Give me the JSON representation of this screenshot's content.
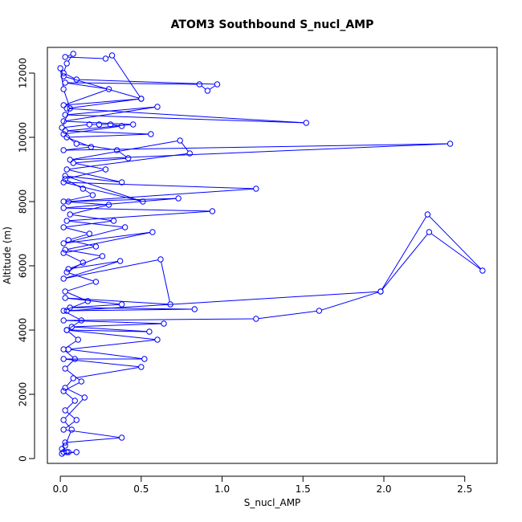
{
  "chart_data": {
    "type": "line",
    "title": "ATOM3 Southbound S_nucl_AMP",
    "xlabel": "S_nucl_AMP",
    "ylabel": "Altitude (m)",
    "xlim": [
      -0.08,
      2.7
    ],
    "ylim": [
      -150,
      12800
    ],
    "xticks": [
      0.0,
      0.5,
      1.0,
      1.5,
      2.0,
      2.5
    ],
    "xtick_labels": [
      "0.0",
      "0.5",
      "1.0",
      "1.5",
      "2.0",
      "2.5"
    ],
    "yticks": [
      0,
      2000,
      4000,
      6000,
      8000,
      10000,
      12000
    ],
    "ytick_labels": [
      "0",
      "2000",
      "4000",
      "6000",
      "8000",
      "10000",
      "12000"
    ],
    "grid": false,
    "marker": "open-circle",
    "series": [
      {
        "color": "#0000ff",
        "points": [
          [
            0.02,
            200
          ],
          [
            0.05,
            200
          ],
          [
            0.1,
            200
          ],
          [
            0.01,
            150
          ],
          [
            0.03,
            400
          ],
          [
            0.07,
            900
          ],
          [
            0.02,
            1200
          ],
          [
            0.15,
            1900
          ],
          [
            0.03,
            2200
          ],
          [
            0.08,
            2500
          ],
          [
            0.5,
            2850
          ],
          [
            0.02,
            3100
          ],
          [
            0.52,
            3100
          ],
          [
            0.05,
            3400
          ],
          [
            0.6,
            3700
          ],
          [
            0.04,
            4000
          ],
          [
            0.55,
            3950
          ],
          [
            0.07,
            4100
          ],
          [
            0.64,
            4200
          ],
          [
            0.02,
            4300
          ],
          [
            1.21,
            4350
          ],
          [
            1.6,
            4600
          ],
          [
            1.98,
            5200
          ],
          [
            2.28,
            7050
          ],
          [
            2.61,
            5850
          ],
          [
            2.27,
            7600
          ],
          [
            1.98,
            5200
          ],
          [
            0.04,
            4600
          ],
          [
            0.83,
            4650
          ],
          [
            0.06,
            4700
          ],
          [
            0.38,
            4800
          ],
          [
            0.03,
            5000
          ],
          [
            0.68,
            4800
          ],
          [
            0.62,
            6200
          ],
          [
            0.02,
            5600
          ],
          [
            0.37,
            6150
          ],
          [
            0.05,
            5900
          ],
          [
            0.26,
            6300
          ],
          [
            0.03,
            6500
          ],
          [
            0.57,
            7050
          ],
          [
            0.02,
            6700
          ],
          [
            0.4,
            7200
          ],
          [
            0.04,
            7400
          ],
          [
            0.94,
            7700
          ],
          [
            0.02,
            7800
          ],
          [
            0.73,
            8100
          ],
          [
            0.05,
            8000
          ],
          [
            1.21,
            8400
          ],
          [
            0.02,
            8600
          ],
          [
            0.51,
            8000
          ],
          [
            0.03,
            8800
          ],
          [
            0.38,
            8600
          ],
          [
            0.04,
            9000
          ],
          [
            0.8,
            9500
          ],
          [
            0.74,
            9900
          ],
          [
            0.06,
            9300
          ],
          [
            2.41,
            9800
          ],
          [
            0.02,
            9600
          ],
          [
            0.19,
            9700
          ],
          [
            0.04,
            10000
          ],
          [
            0.56,
            10100
          ],
          [
            0.03,
            10200
          ],
          [
            0.45,
            10400
          ],
          [
            0.02,
            10500
          ],
          [
            0.6,
            10950
          ],
          [
            0.03,
            10700
          ],
          [
            1.52,
            10450
          ],
          [
            0.04,
            10900
          ],
          [
            0.5,
            11200
          ],
          [
            0.02,
            11000
          ],
          [
            0.3,
            11500
          ],
          [
            0.03,
            11700
          ],
          [
            0.86,
            11650
          ],
          [
            0.91,
            11450
          ],
          [
            0.97,
            11650
          ],
          [
            0.1,
            11800
          ],
          [
            0.02,
            12000
          ],
          [
            0.04,
            12300
          ],
          [
            0.08,
            12600
          ],
          [
            0.03,
            12500
          ],
          [
            0.28,
            12450
          ],
          [
            0.32,
            12550
          ],
          [
            0.5,
            11200
          ],
          [
            0.02,
            11900
          ],
          [
            0.0,
            12150
          ],
          [
            0.02,
            11500
          ],
          [
            0.06,
            10900
          ],
          [
            0.01,
            10300
          ],
          [
            0.18,
            10400
          ],
          [
            0.24,
            10400
          ],
          [
            0.31,
            10400
          ],
          [
            0.38,
            10350
          ],
          [
            0.02,
            10100
          ],
          [
            0.1,
            9800
          ],
          [
            0.35,
            9600
          ],
          [
            0.42,
            9350
          ],
          [
            0.08,
            9200
          ],
          [
            0.28,
            9000
          ],
          [
            0.03,
            8700
          ],
          [
            0.14,
            8400
          ],
          [
            0.2,
            8200
          ],
          [
            0.02,
            8000
          ],
          [
            0.3,
            7900
          ],
          [
            0.06,
            7600
          ],
          [
            0.33,
            7400
          ],
          [
            0.02,
            7200
          ],
          [
            0.18,
            7000
          ],
          [
            0.05,
            6800
          ],
          [
            0.22,
            6600
          ],
          [
            0.02,
            6400
          ],
          [
            0.14,
            6100
          ],
          [
            0.04,
            5800
          ],
          [
            0.22,
            5500
          ],
          [
            0.03,
            5200
          ],
          [
            0.17,
            4900
          ],
          [
            0.02,
            4600
          ],
          [
            0.13,
            4300
          ],
          [
            0.04,
            4000
          ],
          [
            0.11,
            3700
          ],
          [
            0.02,
            3400
          ],
          [
            0.09,
            3100
          ],
          [
            0.03,
            2800
          ],
          [
            0.13,
            2400
          ],
          [
            0.02,
            2100
          ],
          [
            0.09,
            1800
          ],
          [
            0.03,
            1500
          ],
          [
            0.1,
            1200
          ],
          [
            0.02,
            900
          ],
          [
            0.38,
            650
          ],
          [
            0.03,
            500
          ],
          [
            0.01,
            300
          ],
          [
            0.04,
            200
          ]
        ]
      }
    ]
  }
}
